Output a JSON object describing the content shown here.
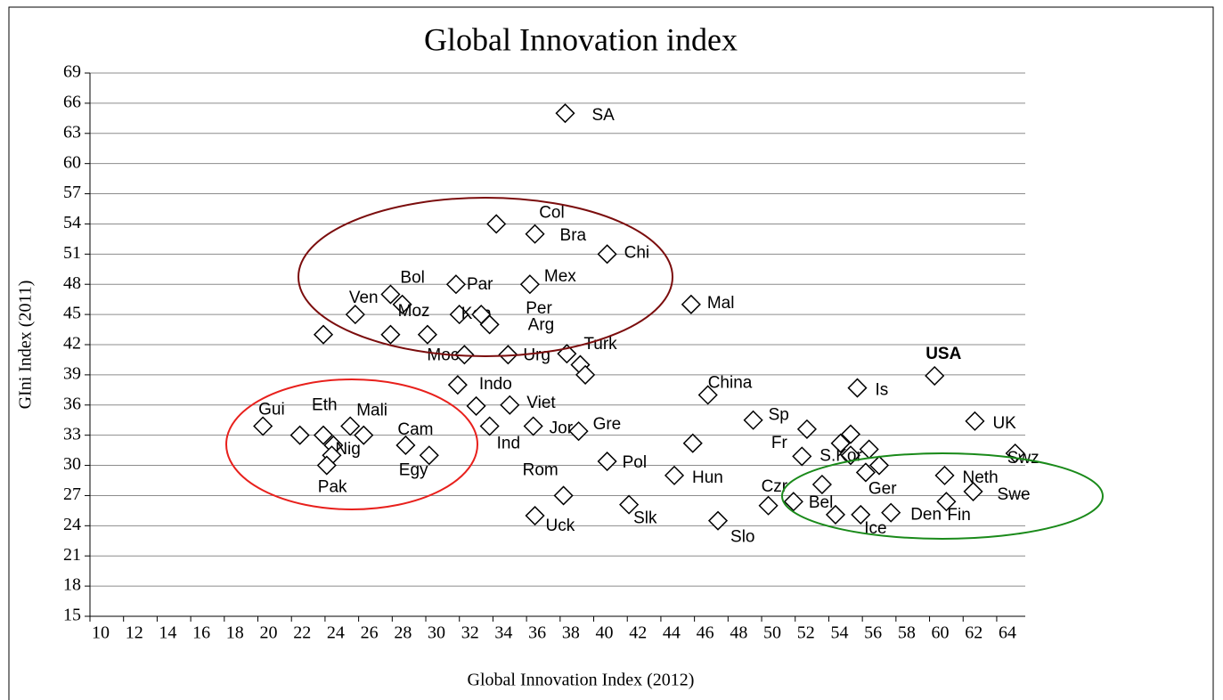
{
  "chart_data": {
    "type": "scatter",
    "title": "Global Innovation index",
    "x_label": "Global Innovation Index (2012)",
    "y_label": "GIni Index (2011)",
    "xlim": [
      10,
      65.7
    ],
    "ylim": [
      15,
      69
    ],
    "xticks": [
      10,
      12,
      14,
      16,
      18,
      20,
      22,
      24,
      26,
      28,
      30,
      32,
      34,
      36,
      38,
      40,
      42,
      44,
      46,
      48,
      50,
      52,
      54,
      56,
      58,
      60,
      62,
      64
    ],
    "yticks": [
      15,
      18,
      21,
      24,
      27,
      30,
      33,
      36,
      39,
      42,
      45,
      48,
      51,
      54,
      57,
      60,
      63,
      66,
      69
    ],
    "grid": true,
    "color": "#000000",
    "x": [
      38.3,
      34.2,
      36.5,
      40.8,
      36.2,
      31.8,
      27.9,
      28.6,
      25.8,
      32.0,
      33.3,
      33.8,
      45.8,
      23.9,
      27.9,
      30.1,
      32.3,
      34.9,
      38.4,
      39.2,
      39.5,
      60.3,
      55.7,
      46.8,
      31.9,
      33.0,
      35.0,
      20.3,
      22.5,
      23.9,
      25.5,
      26.3,
      24.5,
      24.4,
      24.1,
      28.8,
      30.2,
      33.8,
      36.4,
      39.1,
      49.5,
      62.7,
      52.7,
      55.3,
      54.7,
      55.3,
      56.4,
      57.0,
      56.2,
      52.4,
      45.9,
      44.8,
      40.8,
      38.2,
      36.5,
      42.1,
      47.4,
      50.4,
      51.9,
      53.6,
      54.4,
      55.9,
      57.7,
      61.0,
      60.9,
      62.6,
      65.1
    ],
    "y": [
      65.0,
      54.0,
      53.0,
      51.0,
      48.0,
      48.0,
      47.0,
      46.0,
      45.0,
      45.0,
      45.0,
      44.0,
      46.0,
      43.0,
      43.0,
      43.0,
      41.0,
      41.0,
      41.1,
      40.0,
      39.0,
      38.9,
      37.7,
      37.0,
      38.0,
      35.9,
      36.0,
      33.9,
      33.0,
      33.0,
      33.9,
      33.0,
      32.0,
      31.0,
      30.0,
      32.0,
      31.0,
      33.9,
      33.9,
      33.4,
      34.5,
      34.4,
      33.6,
      33.1,
      32.2,
      31.0,
      31.6,
      30.0,
      29.3,
      30.9,
      32.2,
      29.0,
      30.4,
      27.0,
      25.0,
      26.1,
      24.5,
      26.0,
      26.4,
      28.1,
      25.1,
      25.1,
      25.3,
      26.4,
      29.0,
      27.4,
      31.2
    ],
    "labels": [
      "SA",
      "Col",
      "Bra",
      "Chi",
      "Mex",
      "Par",
      "Bol",
      "Moz",
      "Ven",
      "Ken",
      "Per",
      "Arg",
      "Mal",
      null,
      null,
      null,
      "Moc",
      "Urg",
      "Turk",
      null,
      null,
      "USA",
      "Is",
      "China",
      "Indo",
      null,
      "Viet",
      "Gui",
      null,
      "Eth",
      "Mali",
      null,
      "Nig",
      null,
      "Pak",
      "Cam",
      "Egy",
      "Ind",
      "Jor",
      "Gre",
      "Sp",
      "UK",
      "Fr",
      null,
      null,
      null,
      null,
      null,
      "Ger",
      "S.Kor",
      null,
      "Hun",
      "Pol",
      "Rom",
      "Uck",
      "Slk",
      "Slo",
      "Czr",
      "Bel",
      null,
      null,
      "Ice",
      "Den",
      "Fin",
      "Neth",
      "Swe",
      "Swz"
    ]
  }
}
